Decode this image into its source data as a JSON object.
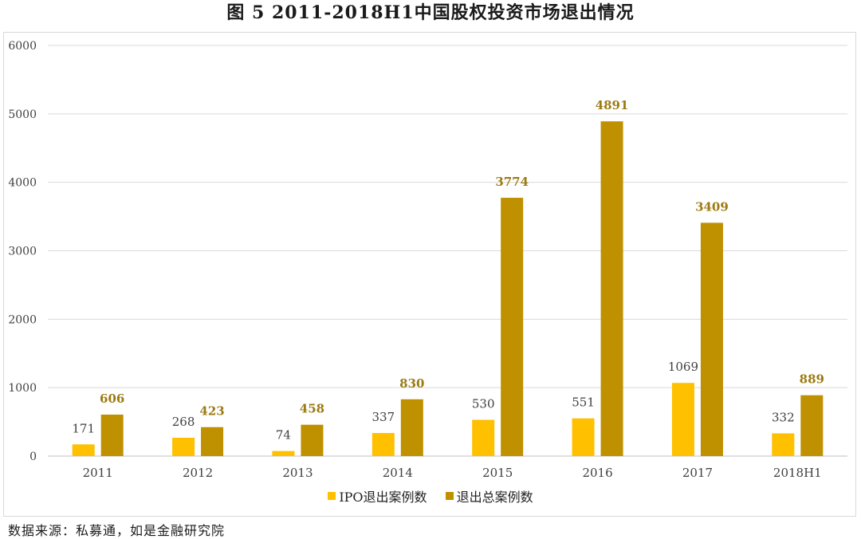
{
  "figure_title": "图 5    2011-2018H1中国股权投资市场退出情况",
  "source_note": "数据来源：私募通，如是金融研究院",
  "colors": {
    "ipo": "#FFC000",
    "total": "#BF9000",
    "total_label": "#9C7A12",
    "axis_text": "#404040",
    "grid": "#d9d9d9"
  },
  "chart_data": {
    "type": "bar",
    "categories": [
      "2011",
      "2012",
      "2013",
      "2014",
      "2015",
      "2016",
      "2017",
      "2018H1"
    ],
    "series": [
      {
        "name": "IPO退出案例数",
        "values": [
          171,
          268,
          74,
          337,
          530,
          551,
          1069,
          332
        ]
      },
      {
        "name": "退出总案例数",
        "values": [
          606,
          423,
          458,
          830,
          3774,
          4891,
          3409,
          889
        ]
      }
    ],
    "yticks": [
      "0",
      "1000",
      "2000",
      "3000",
      "4000",
      "5000",
      "6000"
    ],
    "ylim": [
      0,
      6000
    ],
    "grid": true,
    "legend_position": "bottom"
  }
}
